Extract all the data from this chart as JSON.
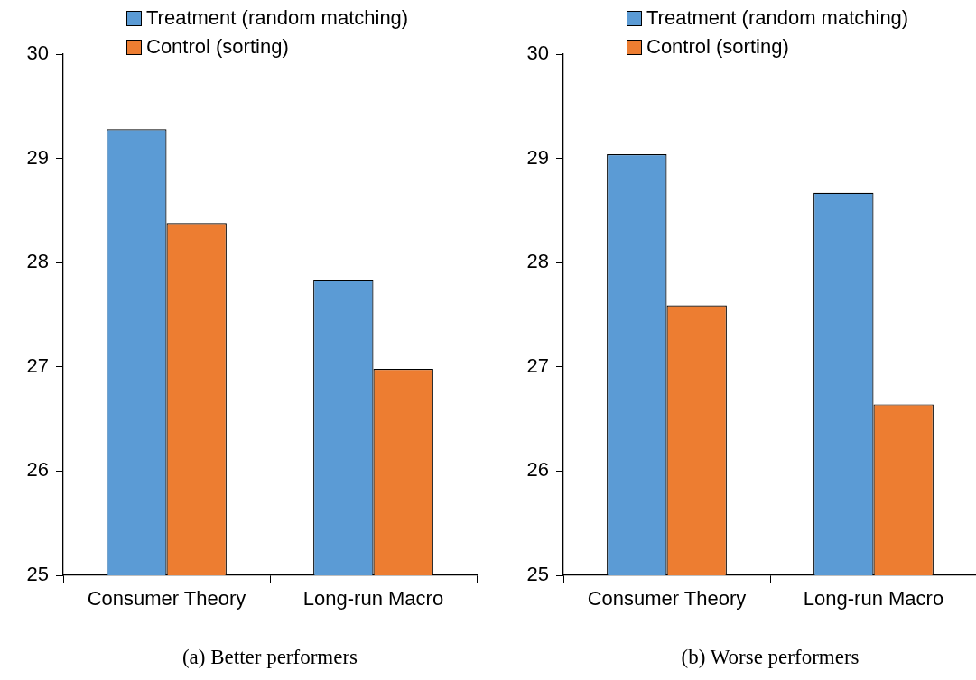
{
  "chart_data": [
    {
      "type": "bar",
      "xlabel": "(a) Better performers",
      "categories": [
        "Consumer Theory",
        "Long-run Macro"
      ],
      "series": [
        {
          "name": "Treatment (random matching)",
          "color": "#5b9bd5",
          "values": [
            29.28,
            27.83
          ]
        },
        {
          "name": "Control (sorting)",
          "color": "#ed7d31",
          "values": [
            28.38,
            26.98
          ]
        }
      ],
      "ylim": [
        25,
        30
      ],
      "yticks": [
        25,
        26,
        27,
        28,
        29,
        30
      ],
      "grid": false,
      "legend": "top"
    },
    {
      "type": "bar",
      "xlabel": "(b) Worse performers",
      "categories": [
        "Consumer Theory",
        "Long-run Macro"
      ],
      "series": [
        {
          "name": "Treatment (random matching)",
          "color": "#5b9bd5",
          "values": [
            29.04,
            28.67
          ]
        },
        {
          "name": "Control (sorting)",
          "color": "#ed7d31",
          "values": [
            27.59,
            26.64
          ]
        }
      ],
      "ylim": [
        25,
        30
      ],
      "yticks": [
        25,
        26,
        27,
        28,
        29,
        30
      ],
      "grid": false,
      "legend": "top"
    }
  ]
}
